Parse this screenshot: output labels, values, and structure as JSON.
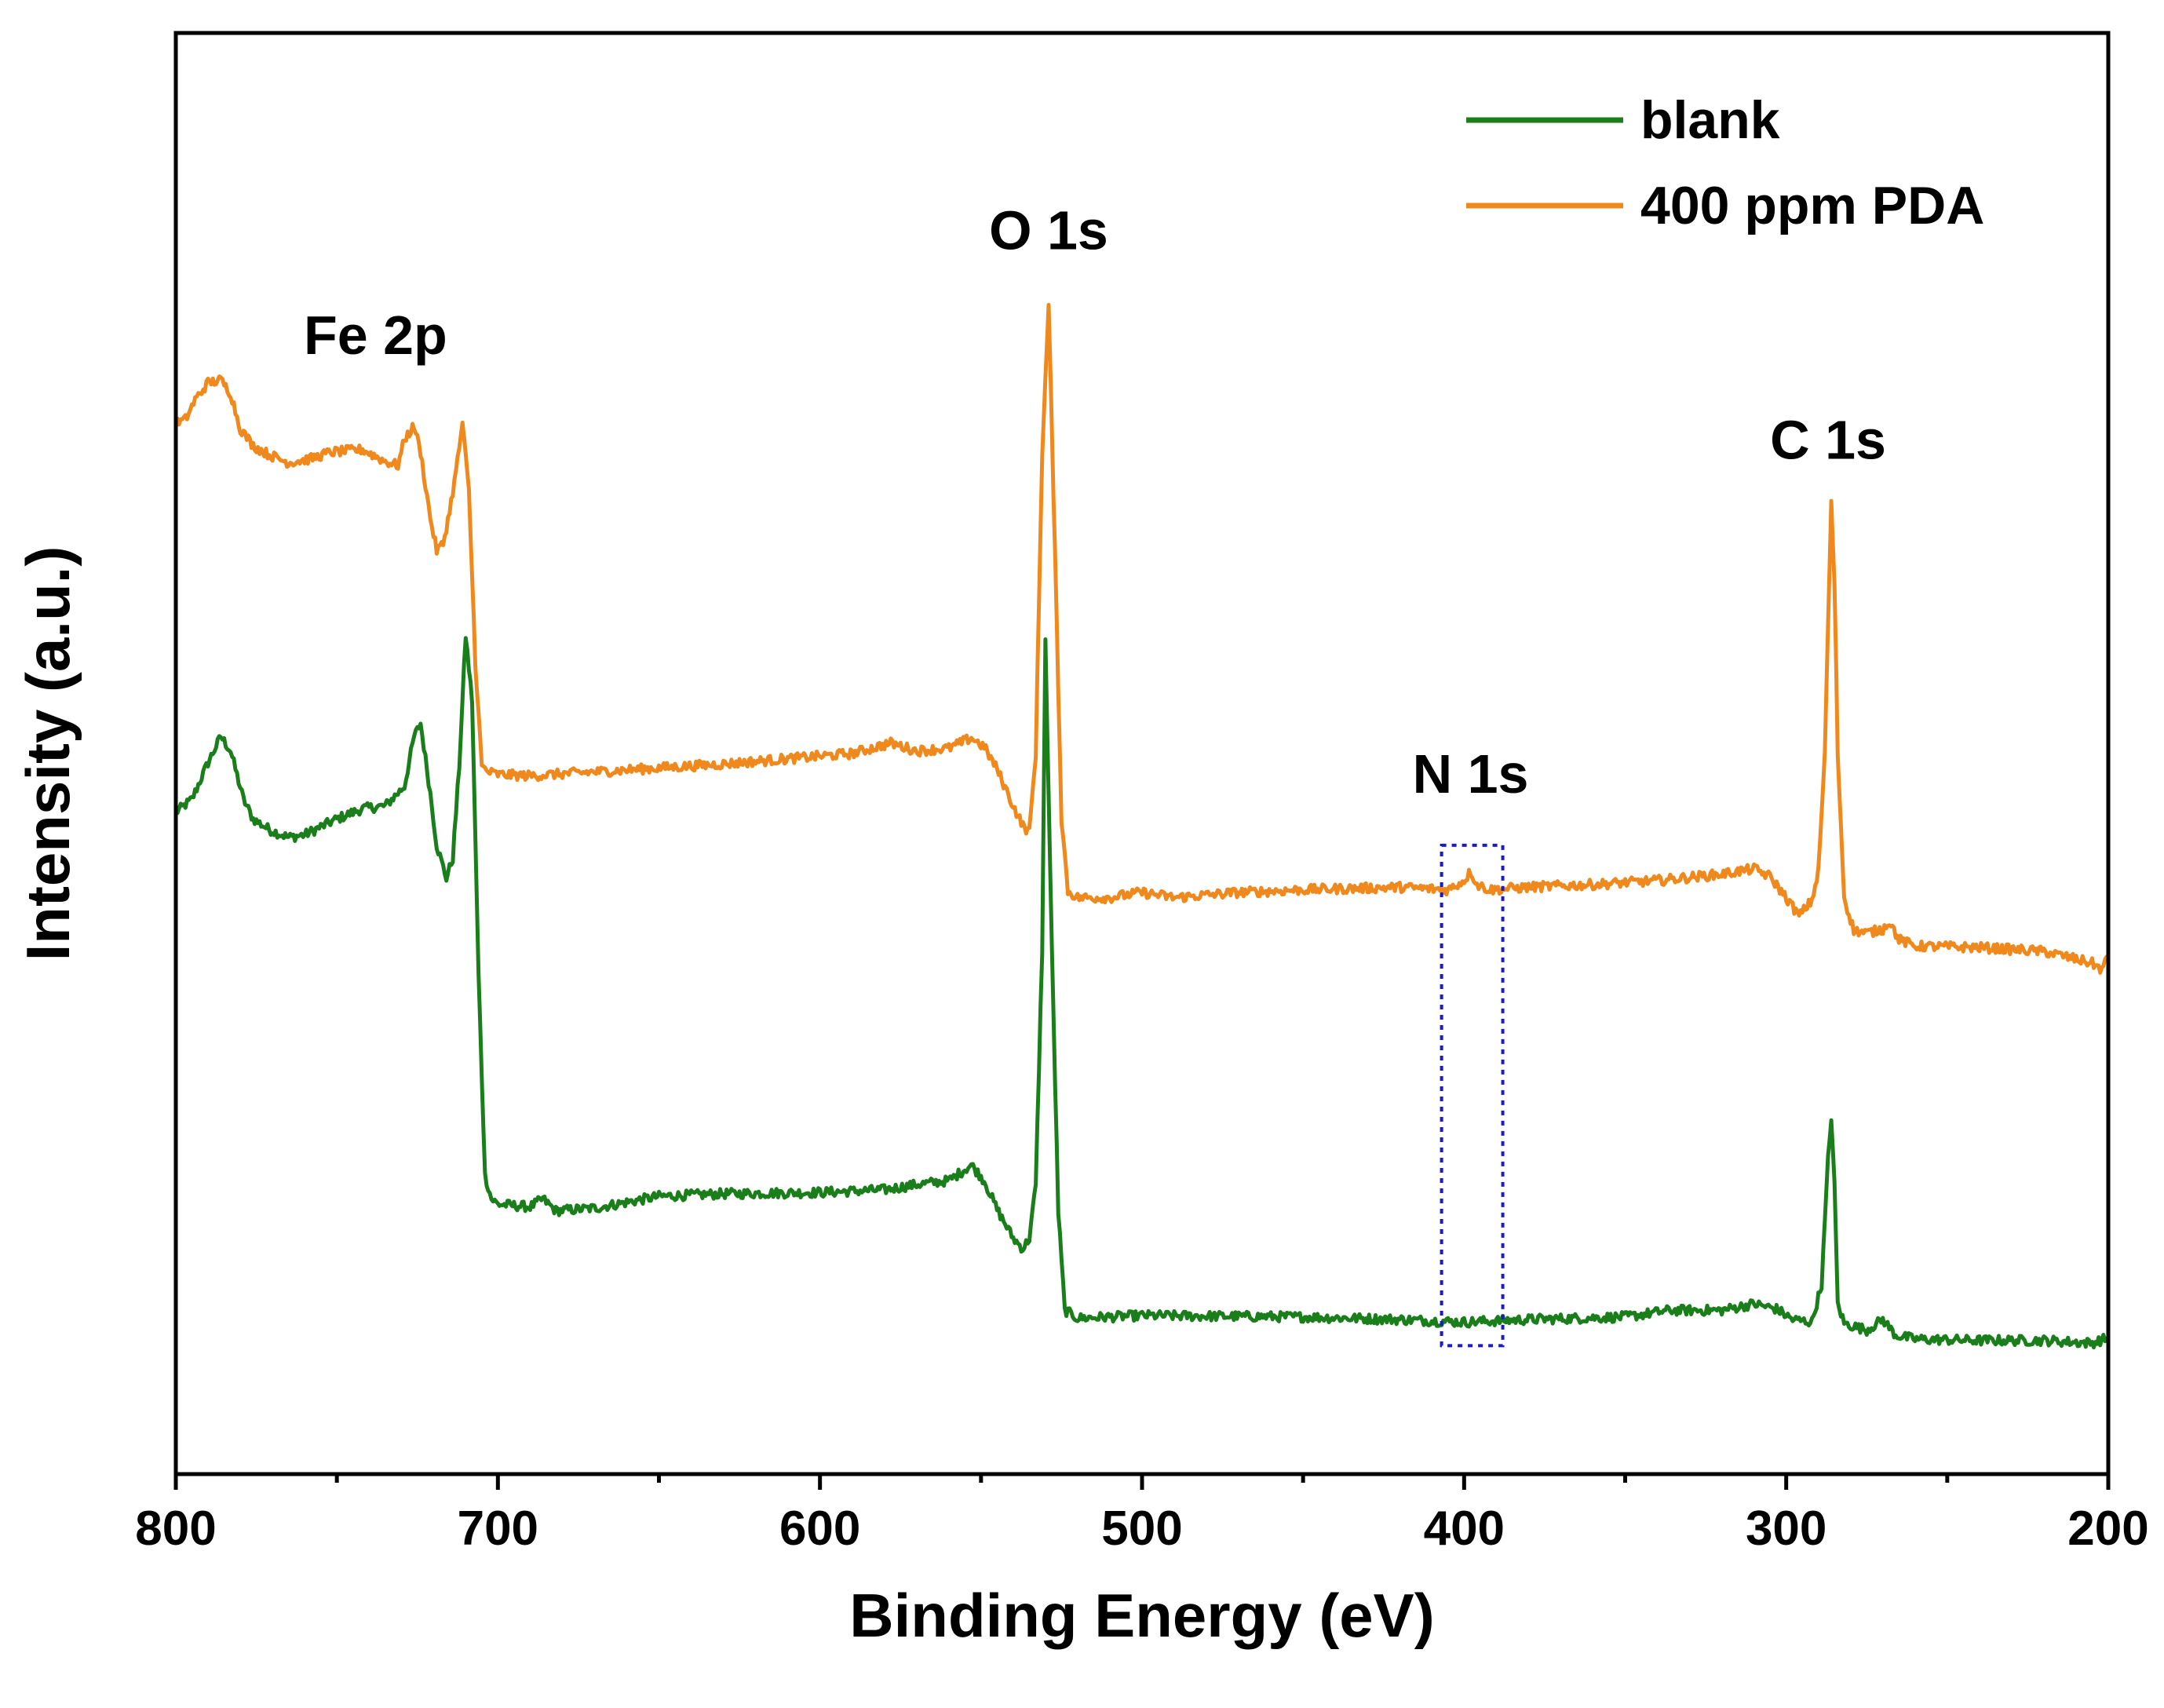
{
  "chart_data": {
    "type": "line",
    "title": "",
    "xlabel": "Binding Energy (eV)",
    "ylabel": "Intensity (a.u.)",
    "xlim": [
      800,
      200
    ],
    "ylim": [
      0,
      110
    ],
    "x_ticks": [
      "800",
      "700",
      "600",
      "500",
      "400",
      "300",
      "200"
    ],
    "x_tick_values": [
      800,
      700,
      600,
      500,
      400,
      300,
      200
    ],
    "x_minor_tick_values": [
      750,
      650,
      550,
      450,
      350,
      250
    ],
    "grid": false,
    "legend": {
      "placement": "top-right",
      "entries": [
        "blank",
        "400 ppm PDA"
      ]
    },
    "series": [
      {
        "name": "blank",
        "color": "#1a7f1a",
        "points": [
          [
            800,
            50.5
          ],
          [
            795,
            51.5
          ],
          [
            790,
            54.3
          ],
          [
            786,
            56.3
          ],
          [
            783,
            55.2
          ],
          [
            779,
            51.5
          ],
          [
            776,
            50.0
          ],
          [
            771,
            49.2
          ],
          [
            765,
            48.6
          ],
          [
            760,
            48.8
          ],
          [
            750,
            50.0
          ],
          [
            742,
            50.8
          ],
          [
            735,
            51.0
          ],
          [
            729,
            52.5
          ],
          [
            726,
            56.3
          ],
          [
            724,
            57.3
          ],
          [
            721,
            52.0
          ],
          [
            719,
            48.0
          ],
          [
            716,
            45.5
          ],
          [
            714,
            47.0
          ],
          [
            712,
            54.0
          ],
          [
            710,
            64.0
          ],
          [
            708,
            59.0
          ],
          [
            706,
            38.0
          ],
          [
            704,
            22.8
          ],
          [
            702,
            21.0
          ],
          [
            700,
            20.6
          ],
          [
            690,
            20.4
          ],
          [
            686,
            21.0
          ],
          [
            682,
            20.1
          ],
          [
            670,
            20.3
          ],
          [
            650,
            21.2
          ],
          [
            630,
            21.4
          ],
          [
            600,
            21.5
          ],
          [
            580,
            21.7
          ],
          [
            570,
            22.1
          ],
          [
            560,
            22.4
          ],
          [
            553,
            23.6
          ],
          [
            549,
            22.4
          ],
          [
            545,
            20.2
          ],
          [
            540,
            18.0
          ],
          [
            537,
            17.2
          ],
          [
            535,
            18.0
          ],
          [
            533,
            22.0
          ],
          [
            531,
            40.0
          ],
          [
            530,
            63.5
          ],
          [
            528,
            40.0
          ],
          [
            526,
            20.0
          ],
          [
            524,
            12.5
          ],
          [
            520,
            11.9
          ],
          [
            500,
            12.1
          ],
          [
            450,
            12.0
          ],
          [
            420,
            11.8
          ],
          [
            400,
            11.6
          ],
          [
            380,
            11.8
          ],
          [
            350,
            12.0
          ],
          [
            336,
            12.5
          ],
          [
            320,
            12.5
          ],
          [
            310,
            13.0
          ],
          [
            303,
            12.6
          ],
          [
            298,
            11.8
          ],
          [
            292,
            11.6
          ],
          [
            289,
            14.5
          ],
          [
            287,
            24.0
          ],
          [
            286,
            27.3
          ],
          [
            285,
            22.0
          ],
          [
            284,
            13.0
          ],
          [
            282,
            11.5
          ],
          [
            275,
            11.0
          ],
          [
            270,
            11.8
          ],
          [
            266,
            10.6
          ],
          [
            260,
            10.3
          ],
          [
            240,
            10.2
          ],
          [
            220,
            10.2
          ],
          [
            205,
            10.0
          ],
          [
            200,
            10.4
          ]
        ]
      },
      {
        "name": "400 ppm PDA",
        "color": "#f0891d",
        "points": [
          [
            800,
            80.2
          ],
          [
            797,
            80.5
          ],
          [
            794,
            82.0
          ],
          [
            790,
            83.3
          ],
          [
            786,
            83.5
          ],
          [
            783,
            82.5
          ],
          [
            780,
            79.8
          ],
          [
            776,
            78.5
          ],
          [
            771,
            77.8
          ],
          [
            765,
            77.2
          ],
          [
            758,
            77.5
          ],
          [
            752,
            78.0
          ],
          [
            742,
            78.2
          ],
          [
            735,
            77.3
          ],
          [
            731,
            77.0
          ],
          [
            729,
            79.0
          ],
          [
            726,
            80.0
          ],
          [
            724,
            78.0
          ],
          [
            721,
            73.0
          ],
          [
            719,
            70.5
          ],
          [
            717,
            71.0
          ],
          [
            715,
            73.5
          ],
          [
            713,
            76.5
          ],
          [
            711,
            80.2
          ],
          [
            709,
            75.0
          ],
          [
            707,
            62.0
          ],
          [
            705,
            54.0
          ],
          [
            703,
            53.6
          ],
          [
            700,
            53.4
          ],
          [
            690,
            53.3
          ],
          [
            670,
            53.6
          ],
          [
            650,
            53.9
          ],
          [
            630,
            54.2
          ],
          [
            610,
            54.6
          ],
          [
            590,
            55.0
          ],
          [
            578,
            55.8
          ],
          [
            570,
            55.2
          ],
          [
            560,
            55.4
          ],
          [
            553,
            56.2
          ],
          [
            549,
            55.5
          ],
          [
            545,
            53.8
          ],
          [
            540,
            51.0
          ],
          [
            537,
            49.5
          ],
          [
            535,
            49.0
          ],
          [
            533,
            55.0
          ],
          [
            531,
            78.0
          ],
          [
            529,
            89.2
          ],
          [
            527,
            70.0
          ],
          [
            525,
            50.0
          ],
          [
            523,
            44.5
          ],
          [
            520,
            44.0
          ],
          [
            510,
            44.0
          ],
          [
            500,
            44.4
          ],
          [
            490,
            44.0
          ],
          [
            470,
            44.4
          ],
          [
            450,
            44.6
          ],
          [
            420,
            44.8
          ],
          [
            405,
            44.6
          ],
          [
            400,
            45.3
          ],
          [
            398,
            46.0
          ],
          [
            396,
            45.0
          ],
          [
            392,
            44.6
          ],
          [
            380,
            44.8
          ],
          [
            360,
            45.0
          ],
          [
            340,
            45.3
          ],
          [
            320,
            45.8
          ],
          [
            310,
            46.2
          ],
          [
            305,
            45.6
          ],
          [
            300,
            44.0
          ],
          [
            296,
            42.6
          ],
          [
            292,
            43.8
          ],
          [
            290,
            46.0
          ],
          [
            288,
            55.0
          ],
          [
            287,
            65.0
          ],
          [
            286,
            74.0
          ],
          [
            285,
            68.0
          ],
          [
            284,
            55.0
          ],
          [
            282,
            44.0
          ],
          [
            279,
            41.5
          ],
          [
            275,
            41.3
          ],
          [
            270,
            41.6
          ],
          [
            268,
            42.2
          ],
          [
            265,
            40.8
          ],
          [
            260,
            40.3
          ],
          [
            240,
            40.2
          ],
          [
            220,
            39.9
          ],
          [
            205,
            39.0
          ],
          [
            202,
            38.5
          ],
          [
            200,
            39.5
          ]
        ]
      }
    ],
    "annotations": [
      {
        "text": "Fe 2p",
        "x": 738,
        "y": 85.5
      },
      {
        "text": "O 1s",
        "x": 529,
        "y": 93.5
      },
      {
        "text": "C 1s",
        "x": 287,
        "y": 77.5
      },
      {
        "text": "N 1s",
        "x": 398,
        "y": 52.0
      }
    ],
    "highlight_box": {
      "x0": 407,
      "x1": 388,
      "y0": 9.8,
      "y1": 48.0,
      "color": "#1a1acc",
      "style": "dotted"
    }
  }
}
